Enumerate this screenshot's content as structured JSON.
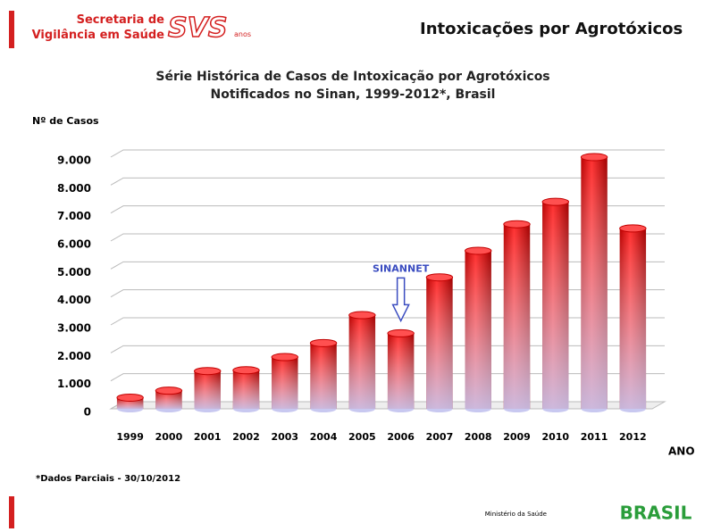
{
  "header": {
    "org_line1": "Secretaria de",
    "org_line2": "Vigilância em Saúde",
    "logo": "SVS",
    "logo_sub": "anos",
    "slide_title": "Intoxicações por Agrotóxicos"
  },
  "chart_data": {
    "type": "bar",
    "title": "Série Histórica de Casos de Intoxicação por Agrotóxicos Notificados no Sinan, 1999-2012*, Brasil",
    "y_label": "Nº de Casos",
    "x_label": "ANO",
    "categories": [
      "1999",
      "2000",
      "2001",
      "2002",
      "2003",
      "2004",
      "2005",
      "2006",
      "2007",
      "2008",
      "2009",
      "2010",
      "2011",
      "2012"
    ],
    "values": [
      400,
      650,
      1350,
      1380,
      1850,
      2350,
      3350,
      2700,
      4700,
      5650,
      6600,
      7400,
      9000,
      6450
    ],
    "color": "#e31a1a",
    "ylim": [
      0,
      9000
    ],
    "yticks": [
      0,
      {
        "value": 1000,
        "label": "1.000"
      },
      {
        "value": 2000,
        "label": "2.000"
      },
      {
        "value": 3000,
        "label": "3.000"
      },
      {
        "value": 4000,
        "label": "4.000"
      },
      {
        "value": 5000,
        "label": "5.000"
      },
      {
        "value": 6000,
        "label": "6.000"
      },
      {
        "value": 7000,
        "label": "7.000"
      },
      {
        "value": 8000,
        "label": "8.000"
      },
      {
        "value": 9000,
        "label": "9.000"
      }
    ],
    "grid": true,
    "annotation": {
      "text": "SINANNET",
      "category": "2006"
    },
    "footnote": "*Dados Parciais - 30/10/2012"
  },
  "footer": {
    "ministry": "Ministério da Saúde",
    "brand": "BRASIL"
  }
}
